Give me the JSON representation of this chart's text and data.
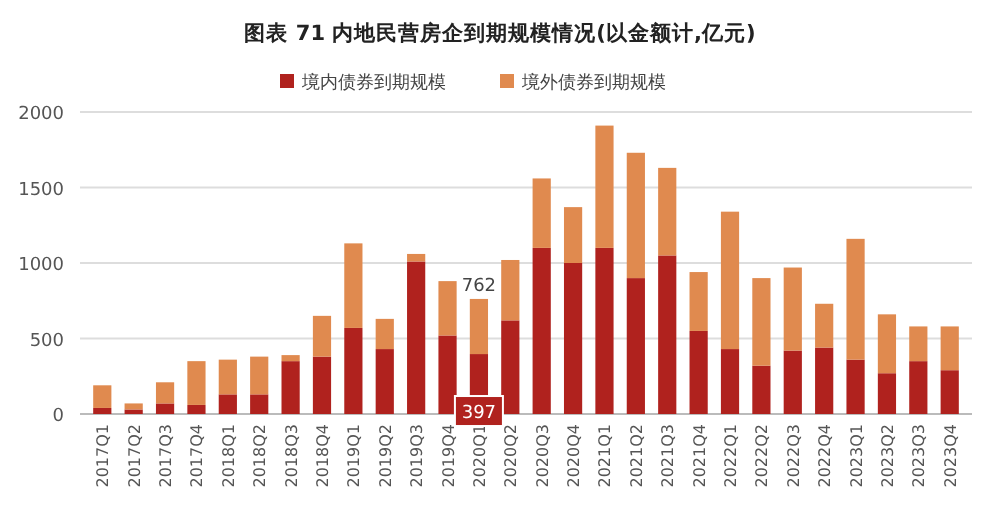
{
  "chart_data": {
    "type": "bar",
    "title": "图表 71    内地民营房企到期规模情况(以金额计,亿元)",
    "stacked": true,
    "categories": [
      "2017Q1",
      "2017Q2",
      "2017Q3",
      "2017Q4",
      "2018Q1",
      "2018Q2",
      "2018Q3",
      "2018Q4",
      "2019Q1",
      "2019Q2",
      "2019Q3",
      "2019Q4",
      "2020Q1",
      "2020Q2",
      "2020Q3",
      "2020Q4",
      "2021Q1",
      "2021Q2",
      "2021Q3",
      "2021Q4",
      "2022Q1",
      "2022Q2",
      "2022Q3",
      "2022Q4",
      "2023Q1",
      "2023Q2",
      "2023Q3",
      "2023Q4"
    ],
    "series": [
      {
        "name": "境内债券到期规模",
        "color": "#b0221e",
        "values": [
          40,
          30,
          70,
          60,
          130,
          130,
          350,
          380,
          570,
          430,
          1010,
          520,
          397,
          620,
          1100,
          1000,
          1100,
          900,
          1050,
          550,
          430,
          320,
          420,
          440,
          360,
          270,
          350,
          290
        ],
        "value_labels": [
          null,
          null,
          null,
          null,
          null,
          null,
          null,
          null,
          null,
          null,
          null,
          null,
          "397",
          null,
          null,
          null,
          null,
          null,
          null,
          null,
          null,
          null,
          null,
          null,
          null,
          null,
          null,
          null
        ]
      },
      {
        "name": "境外债券到期规模",
        "color": "#e08a4f",
        "values": [
          150,
          40,
          140,
          290,
          230,
          250,
          40,
          270,
          560,
          200,
          50,
          360,
          365,
          400,
          460,
          370,
          810,
          830,
          580,
          390,
          910,
          580,
          550,
          290,
          800,
          390,
          230,
          290
        ]
      }
    ],
    "totals": [
      null,
      null,
      null,
      null,
      null,
      null,
      null,
      null,
      null,
      null,
      null,
      null,
      "762",
      null,
      null,
      null,
      null,
      null,
      null,
      null,
      null,
      null,
      null,
      null,
      null,
      null,
      null,
      null
    ],
    "ylim": [
      0,
      2000
    ],
    "yticks": [
      0,
      500,
      1000,
      1500,
      2000
    ],
    "grid": "y",
    "legend": "top"
  }
}
